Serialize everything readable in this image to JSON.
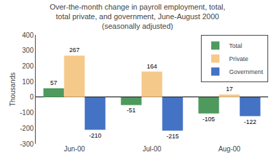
{
  "chart_data": {
    "type": "bar",
    "title": "Over-the-month change in payroll employment, total,\ntotal private, and government, June-August 2000\n(seasonally adjusted)",
    "categories": [
      "Jun-00",
      "Jul-00",
      "Aug-00"
    ],
    "series": [
      {
        "name": "Total",
        "color": "#4e9a5e",
        "values": [
          57,
          -51,
          -105
        ]
      },
      {
        "name": "Private",
        "color": "#f5c98a",
        "values": [
          267,
          164,
          17
        ]
      },
      {
        "name": "Government",
        "color": "#4472c4",
        "values": [
          -210,
          -215,
          -122
        ]
      }
    ],
    "ylabel": "Thousands",
    "ylim": [
      -300,
      400
    ],
    "yticks": [
      -300,
      -200,
      -100,
      0,
      100,
      200,
      300,
      400
    ],
    "legend": "upper right",
    "grid": false,
    "data_labels": true
  }
}
